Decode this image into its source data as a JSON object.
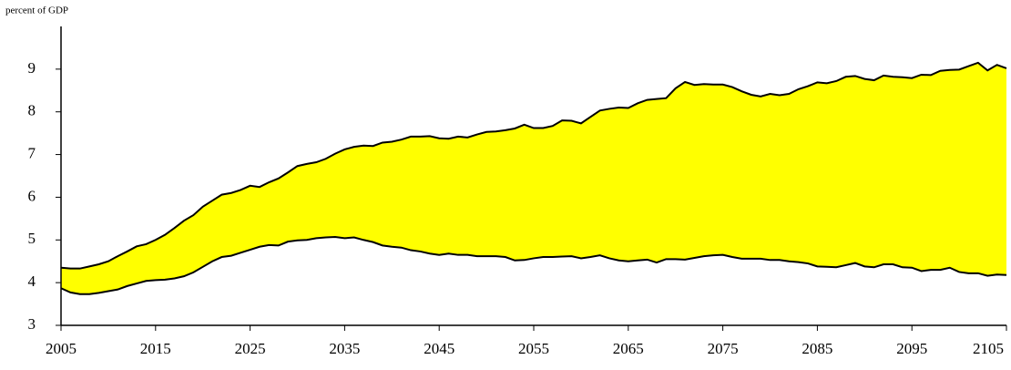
{
  "chart_data": {
    "type": "range_area",
    "y_axis_label": "percent of GDP",
    "x": [
      2005,
      2006,
      2007,
      2008,
      2009,
      2010,
      2011,
      2012,
      2013,
      2014,
      2015,
      2016,
      2017,
      2018,
      2019,
      2020,
      2021,
      2022,
      2023,
      2024,
      2025,
      2026,
      2027,
      2028,
      2029,
      2030,
      2031,
      2032,
      2033,
      2034,
      2035,
      2036,
      2037,
      2038,
      2039,
      2040,
      2041,
      2042,
      2043,
      2044,
      2045,
      2046,
      2047,
      2048,
      2049,
      2050,
      2051,
      2052,
      2053,
      2054,
      2055,
      2056,
      2057,
      2058,
      2059,
      2060,
      2061,
      2062,
      2063,
      2064,
      2065,
      2066,
      2067,
      2068,
      2069,
      2070,
      2071,
      2072,
      2073,
      2074,
      2075,
      2076,
      2077,
      2078,
      2079,
      2080,
      2081,
      2082,
      2083,
      2084,
      2085,
      2086,
      2087,
      2088,
      2089,
      2090,
      2091,
      2092,
      2093,
      2094,
      2095,
      2096,
      2097,
      2098,
      2099,
      2100,
      2101,
      2102,
      2103,
      2104,
      2105
    ],
    "series": [
      {
        "color": "#000000",
        "values": [
          3.87,
          3.77,
          3.73,
          3.73,
          3.76,
          3.8,
          3.84,
          3.92,
          3.98,
          4.04,
          4.06,
          4.07,
          4.1,
          4.15,
          4.24,
          4.37,
          4.5,
          4.6,
          4.63,
          4.7,
          4.77,
          4.84,
          4.88,
          4.87,
          4.96,
          4.99,
          5.0,
          5.04,
          5.06,
          5.07,
          5.04,
          5.06,
          5.0,
          4.95,
          4.87,
          4.84,
          4.82,
          4.76,
          4.73,
          4.68,
          4.65,
          4.68,
          4.65,
          4.65,
          4.62,
          4.62,
          4.62,
          4.6,
          4.52,
          4.53,
          4.57,
          4.6,
          4.6,
          4.61,
          4.62,
          4.57,
          4.6,
          4.64,
          4.57,
          4.52,
          4.5,
          4.52,
          4.54,
          4.47,
          4.55,
          4.55,
          4.54,
          4.58,
          4.62,
          4.64,
          4.65,
          4.6,
          4.56,
          4.56,
          4.56,
          4.53,
          4.53,
          4.5,
          4.48,
          4.45,
          4.38,
          4.37,
          4.36,
          4.41,
          4.46,
          4.38,
          4.36,
          4.43,
          4.43,
          4.36,
          4.35,
          4.27,
          4.3,
          4.3,
          4.35,
          4.25,
          4.22,
          4.22,
          4.16,
          4.19,
          4.18
        ]
      },
      {
        "color": "#000000",
        "values": [
          4.35,
          4.33,
          4.33,
          4.38,
          4.43,
          4.5,
          4.62,
          4.73,
          4.85,
          4.9,
          5.0,
          5.12,
          5.28,
          5.45,
          5.58,
          5.78,
          5.92,
          6.06,
          6.1,
          6.17,
          6.27,
          6.24,
          6.35,
          6.44,
          6.58,
          6.73,
          6.78,
          6.82,
          6.9,
          7.02,
          7.12,
          7.18,
          7.21,
          7.2,
          7.28,
          7.3,
          7.35,
          7.42,
          7.42,
          7.43,
          7.38,
          7.37,
          7.42,
          7.4,
          7.47,
          7.53,
          7.54,
          7.57,
          7.61,
          7.7,
          7.62,
          7.62,
          7.67,
          7.8,
          7.79,
          7.73,
          7.88,
          8.03,
          8.07,
          8.1,
          8.09,
          8.2,
          8.28,
          8.3,
          8.32,
          8.55,
          8.7,
          8.63,
          8.65,
          8.64,
          8.64,
          8.58,
          8.48,
          8.4,
          8.36,
          8.42,
          8.39,
          8.42,
          8.53,
          8.6,
          8.69,
          8.67,
          8.72,
          8.82,
          8.84,
          8.77,
          8.74,
          8.85,
          8.82,
          8.81,
          8.79,
          8.87,
          8.86,
          8.96,
          8.98,
          8.99,
          9.07,
          9.15,
          8.97,
          9.1,
          9.02
        ]
      }
    ],
    "fill_color": "#ffff00",
    "xlim": [
      2005,
      2105
    ],
    "xticks": [
      2005,
      2015,
      2025,
      2035,
      2045,
      2055,
      2065,
      2075,
      2085,
      2095,
      2105
    ],
    "ylim": [
      3,
      10
    ],
    "yticks": [
      3,
      4,
      5,
      6,
      7,
      8,
      9
    ],
    "grid": false
  }
}
